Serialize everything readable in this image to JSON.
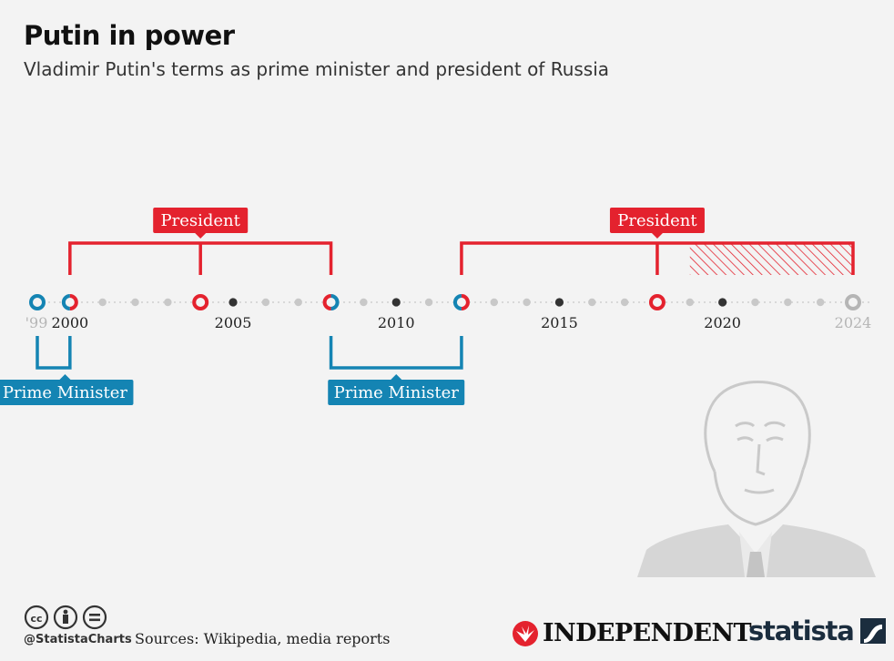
{
  "header": {
    "title": "Putin in power",
    "subtitle": "Vladimir Putin's terms as prime minister and president of Russia"
  },
  "chart_data": {
    "type": "timeline",
    "title": "Putin in power",
    "subtitle": "Vladimir Putin's terms as prime minister and president of Russia",
    "x_range": [
      1999,
      2024
    ],
    "tick_labels": [
      {
        "year": 1999,
        "label": "'99",
        "muted": true
      },
      {
        "year": 2000,
        "label": "2000",
        "muted": false
      },
      {
        "year": 2005,
        "label": "2005",
        "muted": false
      },
      {
        "year": 2010,
        "label": "2010",
        "muted": false
      },
      {
        "year": 2015,
        "label": "2015",
        "muted": false
      },
      {
        "year": 2020,
        "label": "2020",
        "muted": false
      },
      {
        "year": 2024,
        "label": "2024",
        "muted": true
      }
    ],
    "terms": [
      {
        "role": "President",
        "start": 2000,
        "end": 2008,
        "label_at": 2004,
        "mid_marker": 2004,
        "projected_from": null
      },
      {
        "role": "President",
        "start": 2012,
        "end": 2024,
        "label_at": 2018,
        "mid_marker": 2018,
        "projected_from": 2019
      },
      {
        "role": "Prime Minister",
        "start": 1999,
        "end": 2000,
        "label_at": 1999.85
      },
      {
        "role": "Prime Minister",
        "start": 2008,
        "end": 2012,
        "label_at": 2010
      }
    ],
    "markers": [
      {
        "year": 1999,
        "type": "pm"
      },
      {
        "year": 2000,
        "type": "pm-president"
      },
      {
        "year": 2004,
        "type": "president"
      },
      {
        "year": 2008,
        "type": "president-pm"
      },
      {
        "year": 2012,
        "type": "pm-president"
      },
      {
        "year": 2018,
        "type": "president"
      },
      {
        "year": 2024,
        "type": "future"
      }
    ]
  },
  "colors": {
    "president": "#e4222e",
    "prime_minister": "#1484b3",
    "dot_minor": "#c8c8c8",
    "dot_major": "#333333",
    "muted": "#b5b5b5",
    "future": "#b5b5b5"
  },
  "footer": {
    "handle": "@StatistaCharts",
    "sources": "Sources: Wikipedia, media reports",
    "publisher": "INDEPENDENT",
    "brand": "statista",
    "license_icons": [
      "cc-icon",
      "attribution-icon",
      "no-derivatives-icon"
    ]
  }
}
